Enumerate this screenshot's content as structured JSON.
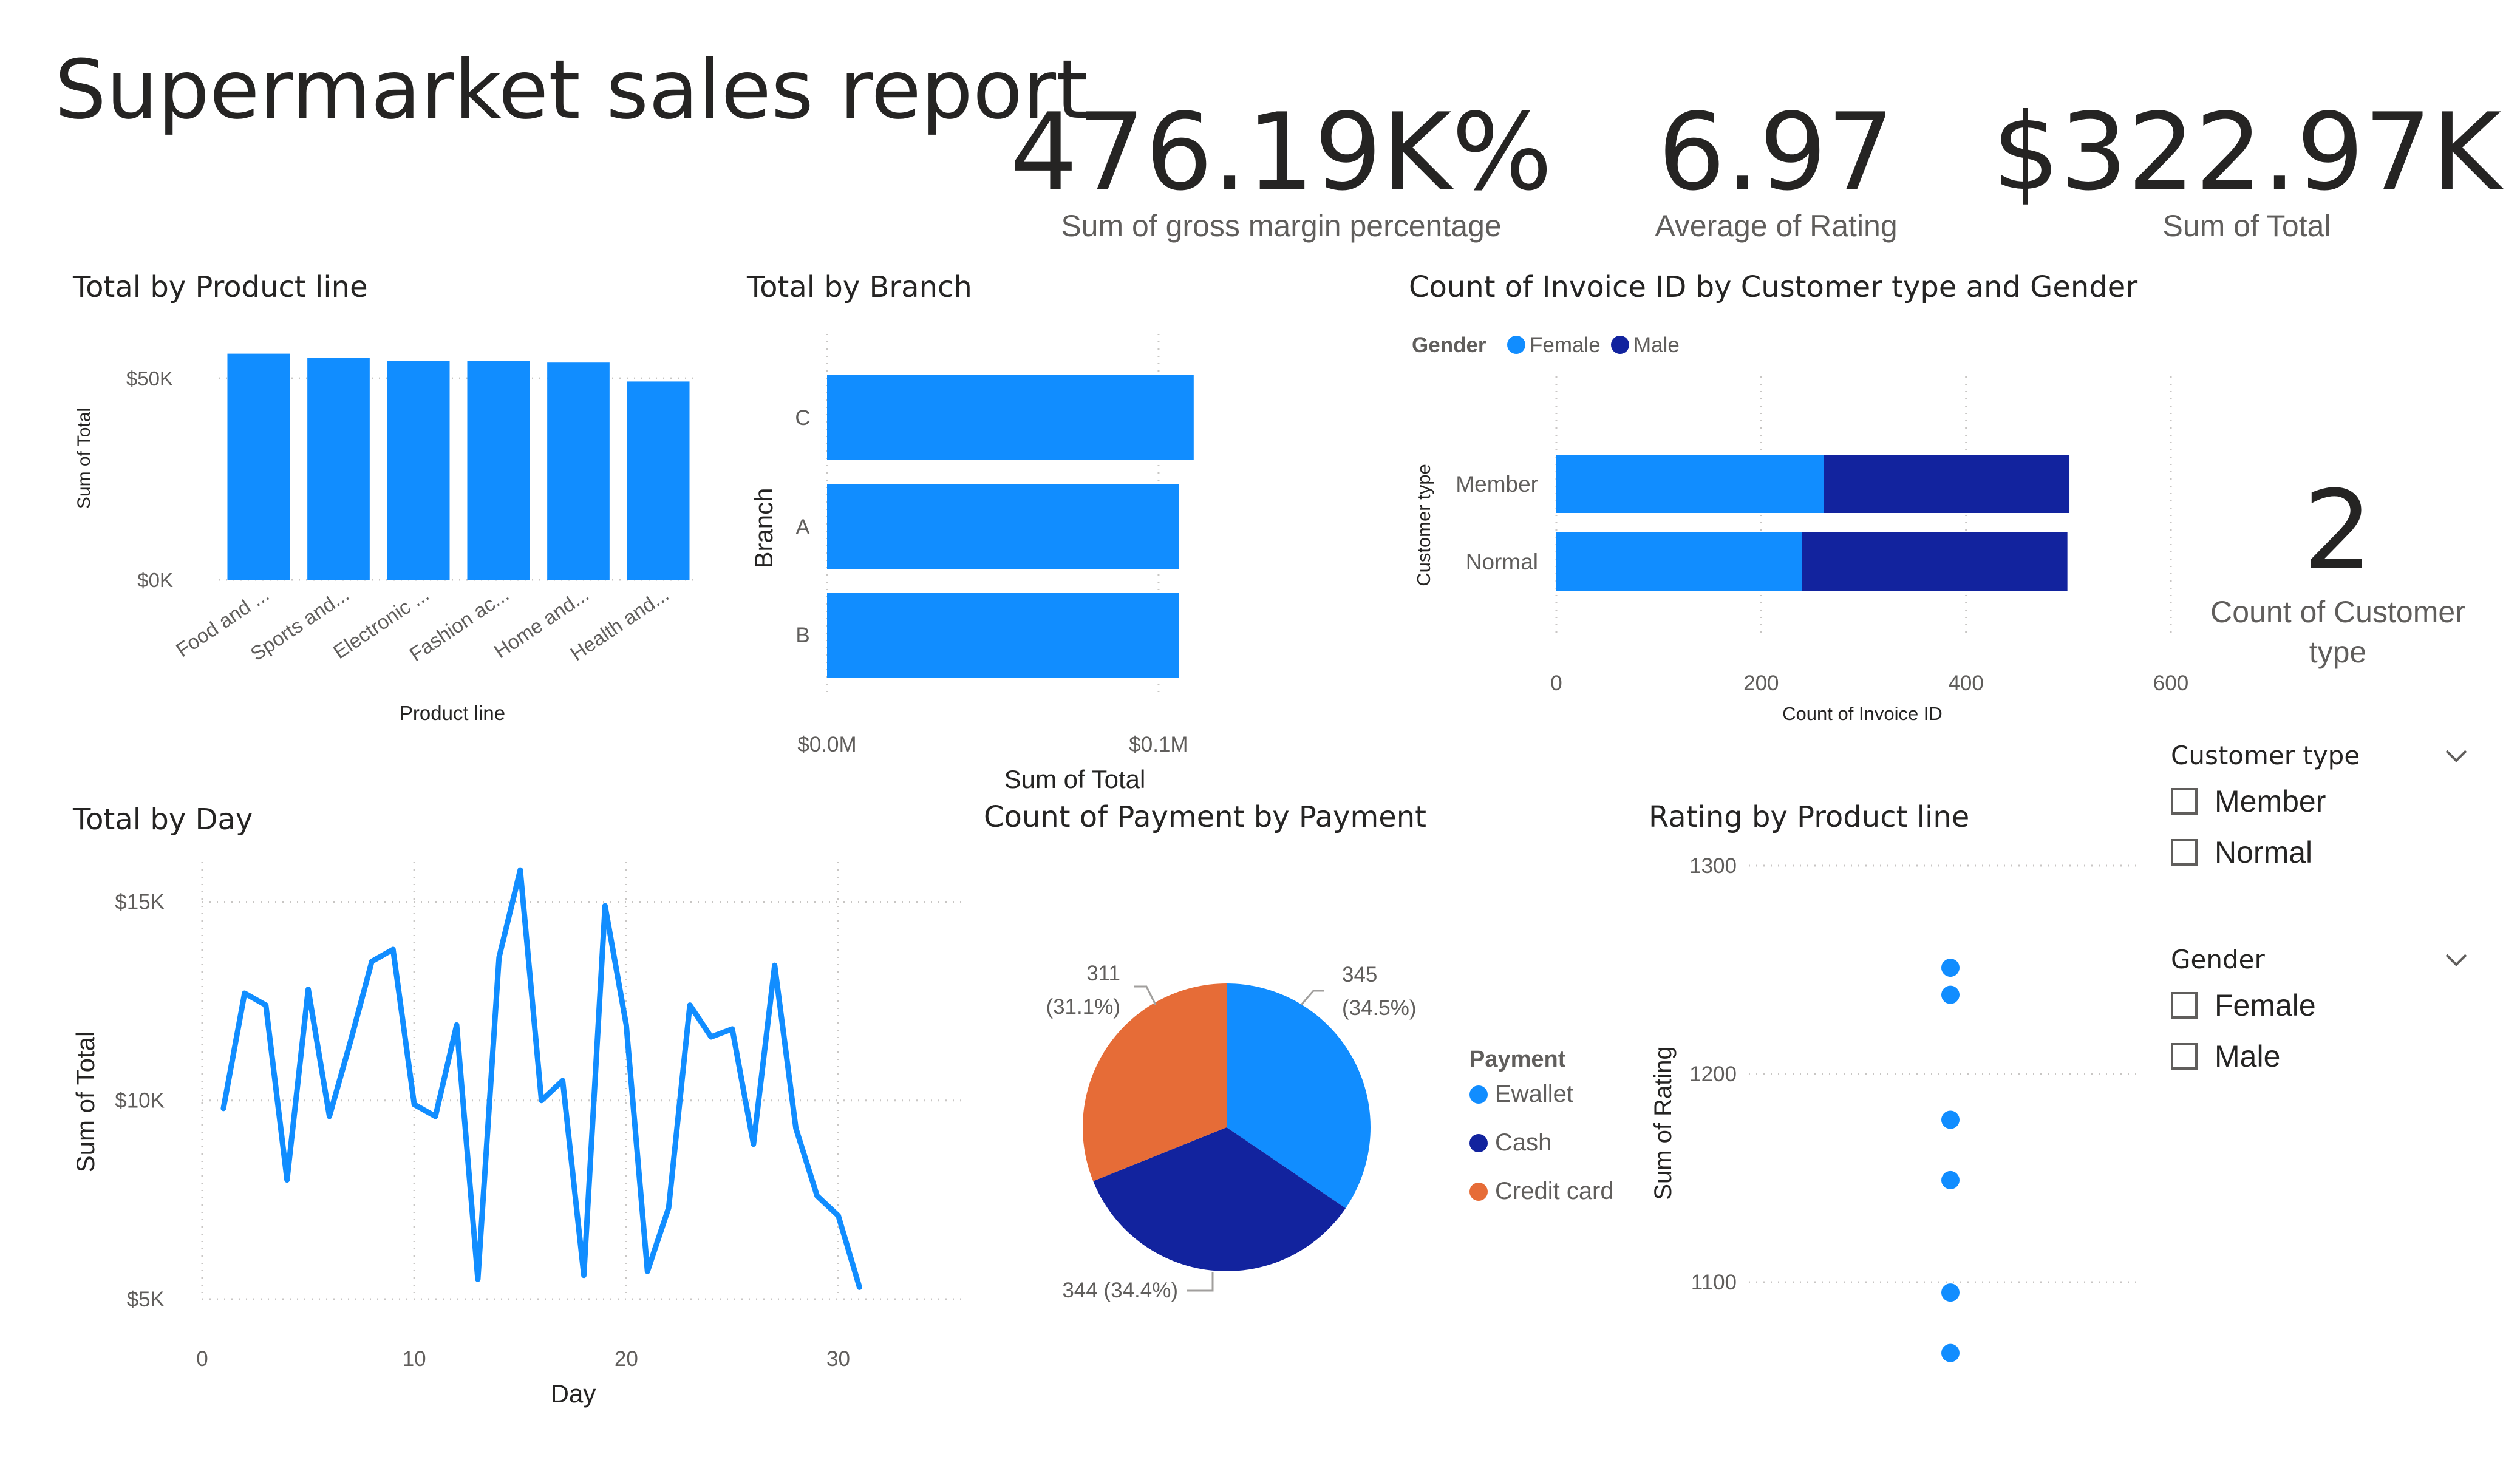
{
  "title": "Supermarket sales report",
  "colors": {
    "blue": "#118DFF",
    "navy": "#12239E",
    "orange": "#E66C37",
    "text": "#252423",
    "muted": "#605e5c"
  },
  "kpis": [
    {
      "value": "476.19K%",
      "label": "Sum of gross margin percentage"
    },
    {
      "value": "6.97",
      "label": "Average of Rating"
    },
    {
      "value": "$322.97K",
      "label": "Sum of Total"
    }
  ],
  "card_customer": {
    "value": "2",
    "label_line1": "Count of Customer",
    "label_line2": "type"
  },
  "visual_titles": {
    "product_line": "Total by Product line",
    "branch": "Total by Branch",
    "invoice": "Count of Invoice ID by Customer type and Gender",
    "day": "Total by Day",
    "payment": "Count of Payment by Payment",
    "rating": "Rating by Product line"
  },
  "slicers": {
    "customer_type": {
      "title": "Customer type",
      "options": [
        "Member",
        "Normal"
      ]
    },
    "gender": {
      "title": "Gender",
      "options": [
        "Female",
        "Male"
      ]
    }
  },
  "chart_data": [
    {
      "id": "product_line",
      "type": "bar",
      "title": "Total by Product line",
      "xlabel": "Product line",
      "ylabel": "Sum of Total",
      "categories": [
        "Food and ...",
        "Sports and...",
        "Electronic ...",
        "Fashion ac...",
        "Home and...",
        "Health and..."
      ],
      "values": [
        56100,
        55100,
        54300,
        54300,
        53900,
        49200
      ],
      "ylim": [
        0,
        58000
      ],
      "yticks": [
        {
          "v": 0,
          "label": "$0K"
        },
        {
          "v": 50000,
          "label": "$50K"
        }
      ],
      "grid": true
    },
    {
      "id": "branch",
      "type": "bar",
      "orientation": "horizontal",
      "title": "Total by Branch",
      "xlabel": "Sum of Total",
      "ylabel": "Branch",
      "categories": [
        "C",
        "A",
        "B"
      ],
      "values": [
        110600,
        106200,
        106200
      ],
      "xlim": [
        0,
        111000
      ],
      "xticks": [
        {
          "v": 0,
          "label": "$0.0M"
        },
        {
          "v": 100000,
          "label": "$0.1M"
        }
      ],
      "grid": true
    },
    {
      "id": "invoice",
      "type": "bar",
      "orientation": "horizontal",
      "stacked": true,
      "title": "Count of Invoice ID by Customer type and Gender",
      "xlabel": "Count of Invoice ID",
      "ylabel": "Customer type",
      "legend_title": "Gender",
      "categories": [
        "Member",
        "Normal"
      ],
      "series": [
        {
          "name": "Female",
          "values": [
            261,
            240
          ]
        },
        {
          "name": "Male",
          "values": [
            240,
            259
          ]
        }
      ],
      "xlim": [
        0,
        600
      ],
      "xticks": [
        0,
        200,
        400,
        600
      ],
      "legend": "top-left",
      "grid": true
    },
    {
      "id": "day",
      "type": "line",
      "title": "Total by Day",
      "xlabel": "Day",
      "ylabel": "Sum of Total",
      "x": [
        1,
        2,
        3,
        4,
        5,
        6,
        7,
        8,
        9,
        10,
        11,
        12,
        13,
        14,
        15,
        16,
        17,
        18,
        19,
        20,
        21,
        22,
        23,
        24,
        25,
        26,
        27,
        28,
        29,
        30,
        31
      ],
      "values": [
        9800,
        12700,
        12400,
        8000,
        12800,
        9600,
        11500,
        13500,
        13800,
        9900,
        9600,
        11900,
        5500,
        13600,
        15800,
        10000,
        10500,
        5600,
        14900,
        11900,
        5700,
        7300,
        12400,
        11600,
        11800,
        8900,
        13400,
        9300,
        7600,
        7100,
        5300
      ],
      "xlim": [
        0,
        36
      ],
      "ylim": [
        5000,
        16000
      ],
      "xticks": [
        0,
        10,
        20,
        30
      ],
      "yticks": [
        {
          "v": 5000,
          "label": "$5K"
        },
        {
          "v": 10000,
          "label": "$10K"
        },
        {
          "v": 15000,
          "label": "$15K"
        }
      ],
      "grid": true
    },
    {
      "id": "payment",
      "type": "pie",
      "title": "Count of Payment by Payment",
      "legend_title": "Payment",
      "categories": [
        "Ewallet",
        "Cash",
        "Credit card"
      ],
      "values": [
        345,
        344,
        311
      ],
      "labels": [
        {
          "count": "345",
          "pct": "(34.5%)"
        },
        {
          "text": "344 (34.4%)"
        },
        {
          "count": "311",
          "pct": "(31.1%)"
        }
      ],
      "legend": "right"
    },
    {
      "id": "rating",
      "type": "scatter",
      "title": "Rating by Product line",
      "ylabel": "Sum of Rating",
      "values": [
        1251,
        1238,
        1178,
        1149,
        1095,
        1066
      ],
      "ylim": [
        1060,
        1300
      ],
      "yticks": [
        1100,
        1200,
        1300
      ],
      "grid": true
    }
  ]
}
